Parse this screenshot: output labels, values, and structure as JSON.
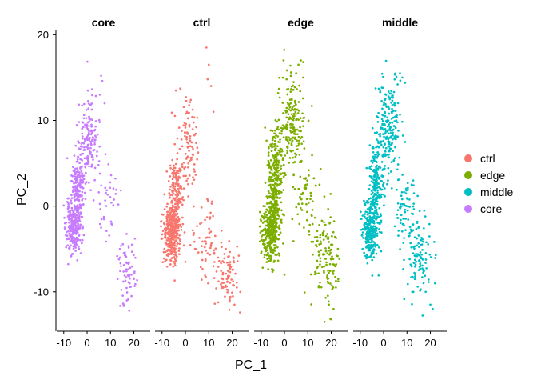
{
  "chart_data": {
    "type": "scatter",
    "xlabel": "PC_1",
    "ylabel": "PC_2",
    "xlim": [
      -13,
      27
    ],
    "ylim": [
      -14.5,
      20.5
    ],
    "x_ticks": [
      -10,
      0,
      10,
      20
    ],
    "x_tick_labels": [
      "-10",
      "0",
      "10",
      "20"
    ],
    "y_ticks": [
      -10,
      0,
      10,
      20
    ],
    "y_tick_labels": [
      "-10",
      "0",
      "10",
      "20"
    ],
    "grid": false,
    "legend_position": "right",
    "legend": [
      {
        "label": "ctrl",
        "color": "#F8766D"
      },
      {
        "label": "edge",
        "color": "#7CAE00"
      },
      {
        "label": "middle",
        "color": "#00BFC4"
      },
      {
        "label": "core",
        "color": "#C77CFF"
      }
    ],
    "facets": [
      {
        "label": "core",
        "color": "#C77CFF",
        "seed": 11,
        "n_points": 650,
        "clusters": [
          {
            "cx": -6,
            "cy": -2.5,
            "sx": 1.5,
            "sy": 1.5,
            "n": 220
          },
          {
            "cx": -4,
            "cy": 2,
            "sx": 1.3,
            "sy": 2.5,
            "n": 180
          },
          {
            "cx": 1,
            "cy": 8,
            "sx": 2.2,
            "sy": 2.8,
            "n": 150
          },
          {
            "cx": 17,
            "cy": -7,
            "sx": 2.2,
            "sy": 2.0,
            "n": 65
          },
          {
            "cx": 9,
            "cy": 0,
            "sx": 2.5,
            "sy": 2.5,
            "n": 35
          }
        ],
        "extremes": [
          {
            "x": 6,
            "y": 15.2
          },
          {
            "x": 6.5,
            "y": 14.6
          },
          {
            "x": 5.5,
            "y": 13.0
          },
          {
            "x": 7.5,
            "y": 12.0
          },
          {
            "x": 18,
            "y": -12.2
          },
          {
            "x": 17,
            "y": -11.0
          },
          {
            "x": 19,
            "y": -10.5
          },
          {
            "x": -9,
            "y": -4.8
          },
          {
            "x": -9.5,
            "y": -2.0
          },
          {
            "x": -8.5,
            "y": 0.5
          },
          {
            "x": 14,
            "y": -5.0
          },
          {
            "x": 20,
            "y": -8.5
          }
        ]
      },
      {
        "label": "ctrl",
        "color": "#F8766D",
        "seed": 22,
        "n_points": 720,
        "clusters": [
          {
            "cx": -6,
            "cy": -3,
            "sx": 1.7,
            "sy": 1.7,
            "n": 310
          },
          {
            "cx": -4,
            "cy": 1,
            "sx": 1.4,
            "sy": 2.5,
            "n": 160
          },
          {
            "cx": 1,
            "cy": 7,
            "sx": 2.3,
            "sy": 3.0,
            "n": 100
          },
          {
            "cx": 18,
            "cy": -8,
            "sx": 2.6,
            "sy": 2.0,
            "n": 90
          },
          {
            "cx": 9,
            "cy": -4,
            "sx": 3.0,
            "sy": 2.5,
            "n": 60
          }
        ],
        "extremes": [
          {
            "x": 9,
            "y": 18.5
          },
          {
            "x": 10,
            "y": 16.5
          },
          {
            "x": 9.5,
            "y": 14.8
          },
          {
            "x": 11,
            "y": 14.0
          },
          {
            "x": 21,
            "y": -11.5
          },
          {
            "x": 19,
            "y": -11.0
          },
          {
            "x": 22,
            "y": -9.5
          },
          {
            "x": -9,
            "y": -5.0
          },
          {
            "x": -9.5,
            "y": -1.0
          },
          {
            "x": 0,
            "y": -6.5
          },
          {
            "x": 12,
            "y": 11.0
          },
          {
            "x": 14,
            "y": -6.0
          }
        ]
      },
      {
        "label": "edge",
        "color": "#7CAE00",
        "seed": 33,
        "n_points": 980,
        "clusters": [
          {
            "cx": -6,
            "cy": -3,
            "sx": 1.9,
            "sy": 1.8,
            "n": 330
          },
          {
            "cx": -4,
            "cy": 3,
            "sx": 1.6,
            "sy": 3.0,
            "n": 280
          },
          {
            "cx": 3,
            "cy": 10,
            "sx": 2.5,
            "sy": 3.0,
            "n": 190
          },
          {
            "cx": 17,
            "cy": -6,
            "sx": 3.0,
            "sy": 2.6,
            "n": 120
          },
          {
            "cx": 10,
            "cy": 1,
            "sx": 3.0,
            "sy": 2.8,
            "n": 60
          }
        ],
        "extremes": [
          {
            "x": 7,
            "y": 17.0
          },
          {
            "x": 8,
            "y": 16.8
          },
          {
            "x": 6,
            "y": 16.5
          },
          {
            "x": 5,
            "y": 15.5
          },
          {
            "x": 8,
            "y": 15.0
          },
          {
            "x": 20,
            "y": -13.2
          },
          {
            "x": 21,
            "y": -12.0
          },
          {
            "x": 22,
            "y": -9.5
          },
          {
            "x": 23,
            "y": -8.5
          },
          {
            "x": 19,
            "y": -11.5
          },
          {
            "x": -10,
            "y": -5.5
          },
          {
            "x": -9,
            "y": 0.0
          },
          {
            "x": 0,
            "y": -8.0
          },
          {
            "x": 15,
            "y": 2.5
          }
        ]
      },
      {
        "label": "middle",
        "color": "#00BFC4",
        "seed": 44,
        "n_points": 820,
        "clusters": [
          {
            "cx": -6,
            "cy": -3,
            "sx": 1.5,
            "sy": 1.6,
            "n": 240
          },
          {
            "cx": -3,
            "cy": 2,
            "sx": 1.5,
            "sy": 2.6,
            "n": 210
          },
          {
            "cx": 2,
            "cy": 9,
            "sx": 2.5,
            "sy": 3.0,
            "n": 200
          },
          {
            "cx": 15,
            "cy": -6,
            "sx": 2.6,
            "sy": 2.4,
            "n": 105
          },
          {
            "cx": 9,
            "cy": 0,
            "sx": 2.4,
            "sy": 2.5,
            "n": 65
          }
        ],
        "extremes": [
          {
            "x": 7,
            "y": 15.5
          },
          {
            "x": 8,
            "y": 15.0
          },
          {
            "x": 6,
            "y": 14.2
          },
          {
            "x": 21,
            "y": -12.0
          },
          {
            "x": 20,
            "y": -11.5
          },
          {
            "x": 18,
            "y": -10.0
          },
          {
            "x": -9,
            "y": -5.0
          },
          {
            "x": -9.5,
            "y": -1.5
          },
          {
            "x": 13,
            "y": 1.5
          },
          {
            "x": 22,
            "y": -9.0
          }
        ]
      }
    ]
  }
}
